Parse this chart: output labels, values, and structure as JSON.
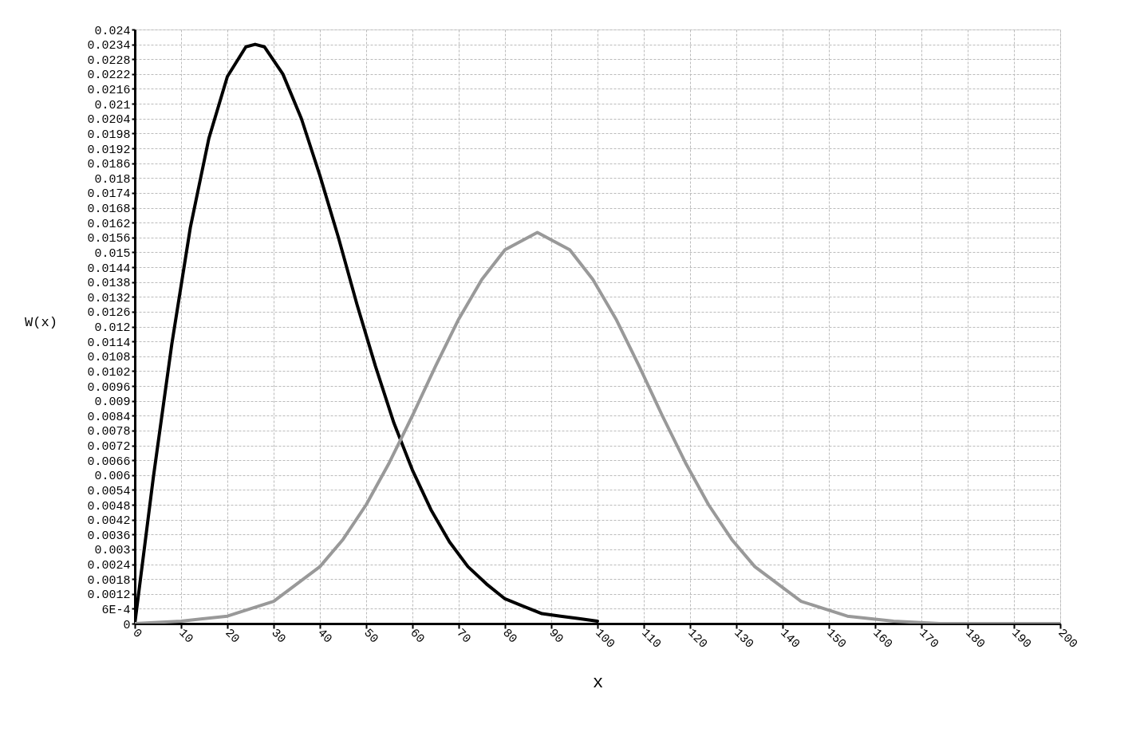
{
  "chart_data": {
    "type": "line",
    "xlabel": "x",
    "ylabel": "W(x)",
    "grid": true,
    "marker": "none",
    "line_style": "solid",
    "xlim": [
      0,
      200
    ],
    "xticks": [
      0,
      10,
      20,
      30,
      40,
      50,
      60,
      70,
      80,
      90,
      100,
      110,
      120,
      130,
      140,
      150,
      160,
      170,
      180,
      190,
      200
    ],
    "ylim": [
      0,
      0.024
    ],
    "yticks": [
      0,
      {
        "value": 0.0006,
        "label": "6E-4"
      },
      0.0012,
      0.0018,
      0.0024,
      0.003,
      0.0036,
      0.0042,
      0.0048,
      0.0054,
      0.006,
      0.0066,
      0.0072,
      0.0078,
      0.0084,
      0.009,
      0.0096,
      0.0102,
      0.0108,
      0.0114,
      0.012,
      0.0126,
      0.0132,
      0.0138,
      0.0144,
      0.015,
      0.0156,
      0.0162,
      0.0168,
      0.0174,
      0.018,
      0.0186,
      0.0192,
      0.0198,
      0.0204,
      0.021,
      0.0216,
      0.0222,
      0.0228,
      0.0234,
      0.024
    ],
    "series": [
      {
        "color": "#000000",
        "x": [
          0,
          4,
          8,
          12,
          16,
          20,
          24,
          26,
          28,
          32,
          36,
          40,
          44,
          48,
          52,
          56,
          60,
          64,
          68,
          72,
          76,
          80,
          84,
          88,
          92,
          96,
          100
        ],
        "values": [
          0,
          0.0059,
          0.0113,
          0.016,
          0.0196,
          0.0221,
          0.0233,
          0.0234,
          0.0233,
          0.0222,
          0.0204,
          0.0181,
          0.0156,
          0.0129,
          0.0104,
          0.0081,
          0.0062,
          0.0046,
          0.0033,
          0.0023,
          0.0016,
          0.001,
          0.0007,
          0.0004,
          0.0003,
          0.0002,
          0.0001
        ]
      },
      {
        "color": "#999999",
        "x": [
          0,
          10,
          20,
          30,
          40,
          45,
          50,
          55,
          60,
          65,
          70,
          75,
          80,
          87,
          94,
          99,
          104,
          109,
          114,
          119,
          124,
          129,
          134,
          144,
          154,
          164,
          174,
          184,
          200
        ],
        "values": [
          0,
          0.0001,
          0.0003,
          0.0009,
          0.0023,
          0.0034,
          0.0048,
          0.0065,
          0.0084,
          0.0104,
          0.0123,
          0.0139,
          0.0151,
          0.0158,
          0.0151,
          0.0139,
          0.0123,
          0.0104,
          0.0084,
          0.0065,
          0.0048,
          0.0034,
          0.0023,
          0.0009,
          0.0003,
          0.0001,
          0,
          0,
          0
        ]
      }
    ]
  }
}
